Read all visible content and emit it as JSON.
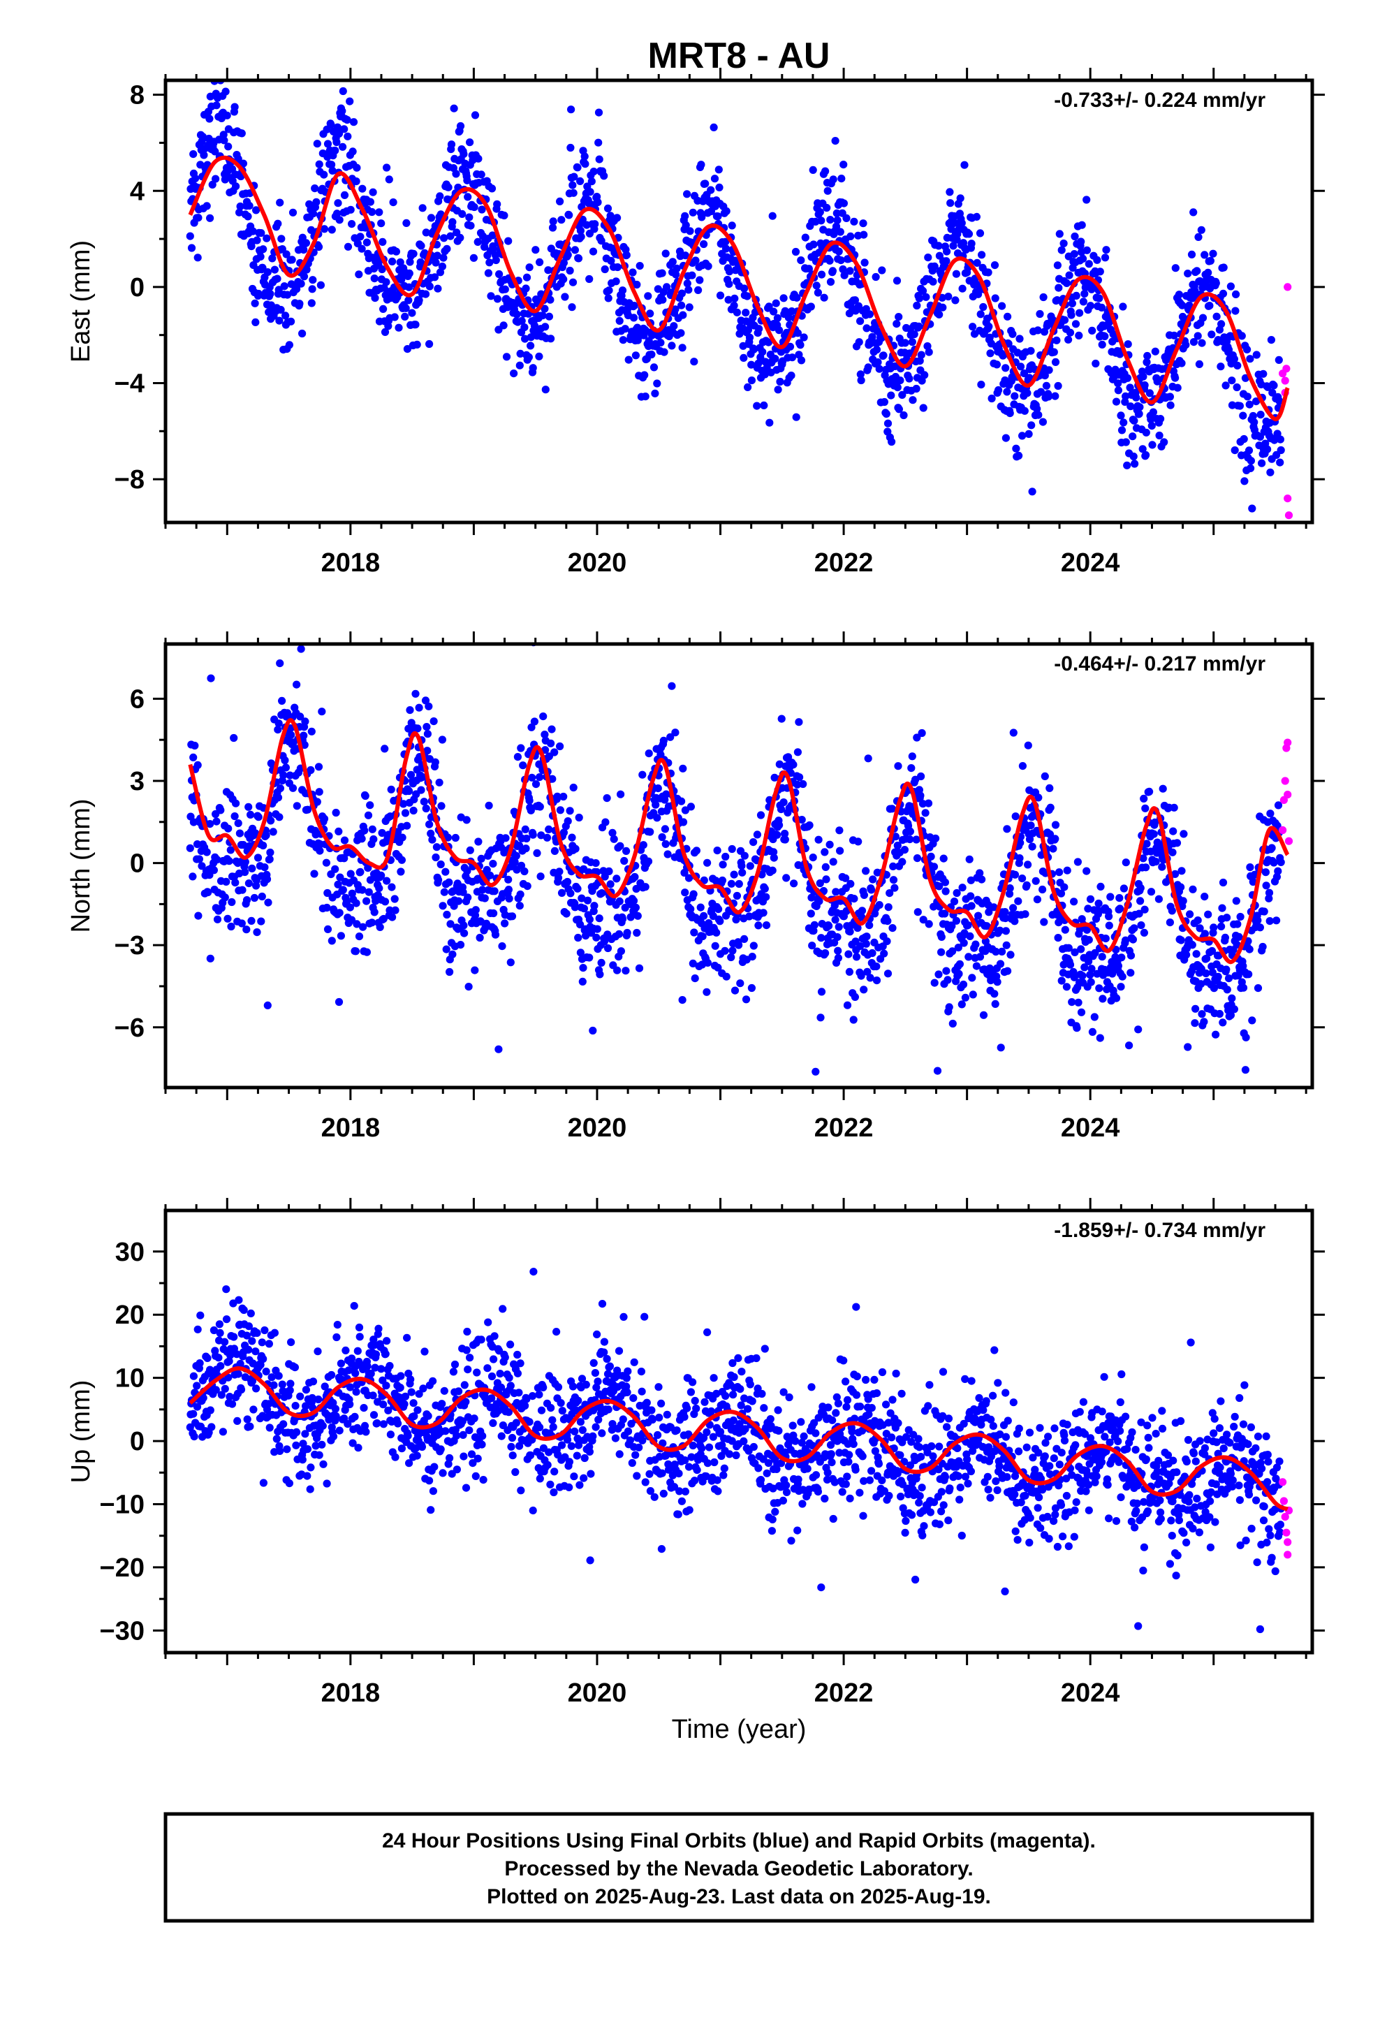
{
  "title": "MRT8 - AU",
  "xlabel": "Time (year)",
  "colors": {
    "final": "#0000ff",
    "rapid": "#ff00ff",
    "fit": "#ff0000",
    "frame": "#000000"
  },
  "footer": {
    "line1": "24 Hour Positions Using Final Orbits (blue) and Rapid Orbits (magenta).",
    "line2": "Processed by the Nevada Geodetic Laboratory.",
    "line3": "Plotted on 2025-Aug-23. Last data on 2025-Aug-19."
  },
  "chart_data": [
    {
      "type": "scatter",
      "panel": "east",
      "ylabel": "East (mm)",
      "rate": "-0.733+/- 0.224 mm/yr",
      "xlim": [
        2016.5,
        2025.8
      ],
      "ylim": [
        -9.8,
        8.6
      ],
      "xticks": [
        2018,
        2020,
        2022,
        2024
      ],
      "yticks": [
        -8,
        -4,
        0,
        4,
        8
      ],
      "series_final": {
        "start": 2016.7,
        "end": 2025.55,
        "offset": 3.2,
        "trend": -0.733,
        "annual_amp": 2.9,
        "annual_phase_peak": 0.92,
        "semi_amp": 0.3,
        "noise": 1.3
      },
      "fit_curve": {
        "x": [
          2016.7,
          2016.9,
          2017.1,
          2017.3,
          2017.5,
          2017.7,
          2017.9,
          2018.1,
          2018.3,
          2018.5,
          2018.7,
          2018.9,
          2019.1,
          2019.3,
          2019.5,
          2019.7,
          2019.9,
          2020.1,
          2020.3,
          2020.5,
          2020.7,
          2020.9,
          2021.1,
          2021.3,
          2021.5,
          2021.7,
          2021.9,
          2022.1,
          2022.3,
          2022.5,
          2022.7,
          2022.9,
          2023.1,
          2023.3,
          2023.5,
          2023.7,
          2023.9,
          2024.1,
          2024.3,
          2024.5,
          2024.7,
          2024.9,
          2025.1,
          2025.3,
          2025.5,
          2025.6
        ],
        "y": [
          3.0,
          5.2,
          5.0,
          3.0,
          0.5,
          1.8,
          4.7,
          3.2,
          0.8,
          -0.3,
          2.2,
          4.0,
          3.4,
          0.6,
          -1.0,
          1.2,
          3.2,
          2.4,
          -0.2,
          -1.8,
          0.6,
          2.5,
          1.8,
          -0.8,
          -2.5,
          -0.2,
          1.8,
          1.0,
          -1.6,
          -3.3,
          -1.2,
          1.1,
          0.4,
          -2.4,
          -4.1,
          -1.8,
          0.3,
          -0.2,
          -3.0,
          -4.8,
          -2.6,
          -0.4,
          -1.0,
          -3.8,
          -5.5,
          -4.2
        ]
      },
      "rapid_points": {
        "x": [
          2025.56,
          2025.58,
          2025.58,
          2025.59,
          2025.6,
          2025.6,
          2025.61
        ],
        "y": [
          -3.6,
          -3.9,
          -4.4,
          -3.4,
          0.0,
          -8.8,
          -9.5
        ]
      }
    },
    {
      "type": "scatter",
      "panel": "north",
      "ylabel": "North (mm)",
      "rate": "-0.464+/- 0.217 mm/yr",
      "xlim": [
        2016.5,
        2025.8
      ],
      "ylim": [
        -8.2,
        8.0
      ],
      "xticks": [
        2018,
        2020,
        2022,
        2024
      ],
      "yticks": [
        -6,
        -3,
        0,
        3,
        6
      ],
      "series_final": {
        "start": 2016.7,
        "end": 2025.55,
        "offset": 1.6,
        "trend": -0.464,
        "annual_amp": 2.4,
        "annual_phase_peak": 0.55,
        "semi_amp": 0.9,
        "noise": 1.3
      },
      "fit_curve": {
        "x": [
          2016.7,
          2016.85,
          2017.0,
          2017.15,
          2017.3,
          2017.45,
          2017.55,
          2017.7,
          2017.85,
          2018.0,
          2018.15,
          2018.3,
          2018.45,
          2018.55,
          2018.7,
          2018.85,
          2019.0,
          2019.15,
          2019.3,
          2019.45,
          2019.55,
          2019.7,
          2019.85,
          2020.0,
          2020.15,
          2020.3,
          2020.45,
          2020.55,
          2020.7,
          2020.85,
          2021.0,
          2021.15,
          2021.3,
          2021.45,
          2021.55,
          2021.7,
          2021.85,
          2022.0,
          2022.15,
          2022.3,
          2022.45,
          2022.55,
          2022.7,
          2022.85,
          2023.0,
          2023.15,
          2023.3,
          2023.45,
          2023.55,
          2023.7,
          2023.85,
          2024.0,
          2024.15,
          2024.3,
          2024.45,
          2024.55,
          2024.7,
          2024.85,
          2025.0,
          2025.15,
          2025.3,
          2025.45,
          2025.6
        ],
        "y": [
          3.6,
          1.0,
          1.0,
          0.2,
          1.5,
          4.6,
          5.0,
          2.0,
          0.6,
          0.6,
          0.0,
          0.2,
          3.8,
          4.6,
          1.5,
          0.2,
          0.0,
          -0.8,
          0.5,
          3.6,
          4.0,
          0.8,
          -0.4,
          -0.5,
          -1.2,
          0.2,
          3.0,
          3.6,
          0.4,
          -0.8,
          -0.9,
          -1.8,
          -0.4,
          2.6,
          3.1,
          -0.2,
          -1.3,
          -1.3,
          -2.2,
          -0.6,
          2.2,
          2.7,
          -0.6,
          -1.7,
          -1.8,
          -2.7,
          -1.0,
          1.8,
          2.2,
          -1.0,
          -2.2,
          -2.3,
          -3.2,
          -1.5,
          1.3,
          1.8,
          -1.5,
          -2.7,
          -2.8,
          -3.6,
          -2.0,
          1.2,
          0.3
        ]
      },
      "rapid_points": {
        "x": [
          2025.56,
          2025.57,
          2025.58,
          2025.59,
          2025.6,
          2025.6,
          2025.61
        ],
        "y": [
          1.2,
          2.3,
          3.0,
          4.2,
          4.4,
          2.5,
          0.8
        ]
      }
    },
    {
      "type": "scatter",
      "panel": "up",
      "ylabel": "Up (mm)",
      "rate": "-1.859+/- 0.734 mm/yr",
      "xlim": [
        2016.5,
        2025.8
      ],
      "ylim": [
        -33.5,
        36.5
      ],
      "xticks": [
        2018,
        2020,
        2022,
        2024
      ],
      "yticks": [
        -30,
        -20,
        -10,
        0,
        10,
        20,
        30
      ],
      "series_final": {
        "start": 2016.7,
        "end": 2025.55,
        "offset": 9.0,
        "trend": -1.859,
        "annual_amp": 3.8,
        "annual_phase_peak": 0.15,
        "semi_amp": 0.5,
        "noise": 4.8
      },
      "fit_curve": {
        "x": [
          2016.7,
          2016.9,
          2017.1,
          2017.3,
          2017.5,
          2017.7,
          2017.9,
          2018.1,
          2018.3,
          2018.5,
          2018.7,
          2018.9,
          2019.1,
          2019.3,
          2019.5,
          2019.7,
          2019.9,
          2020.1,
          2020.3,
          2020.5,
          2020.7,
          2020.9,
          2021.1,
          2021.3,
          2021.5,
          2021.7,
          2021.9,
          2022.1,
          2022.3,
          2022.5,
          2022.7,
          2022.9,
          2023.1,
          2023.3,
          2023.5,
          2023.7,
          2023.9,
          2024.1,
          2024.3,
          2024.5,
          2024.7,
          2024.9,
          2025.1,
          2025.3,
          2025.5,
          2025.6
        ],
        "y": [
          6.0,
          9.5,
          11.5,
          9.0,
          4.5,
          4.5,
          8.5,
          9.8,
          7.2,
          2.6,
          2.8,
          6.8,
          8.1,
          5.5,
          0.8,
          1.0,
          5.0,
          6.3,
          3.8,
          -0.9,
          -0.8,
          3.3,
          4.6,
          2.1,
          -2.7,
          -2.6,
          1.4,
          2.8,
          0.3,
          -4.4,
          -4.3,
          -0.4,
          1.0,
          -1.5,
          -6.2,
          -6.1,
          -2.2,
          -0.8,
          -3.2,
          -8.0,
          -7.9,
          -4.0,
          -2.6,
          -5.0,
          -9.8,
          -10.8
        ]
      },
      "rapid_points": {
        "x": [
          2025.56,
          2025.57,
          2025.58,
          2025.59,
          2025.6,
          2025.6,
          2025.61
        ],
        "y": [
          -6.5,
          -9.5,
          -12.0,
          -14.5,
          -16.0,
          -18.0,
          -11.0
        ]
      }
    }
  ]
}
